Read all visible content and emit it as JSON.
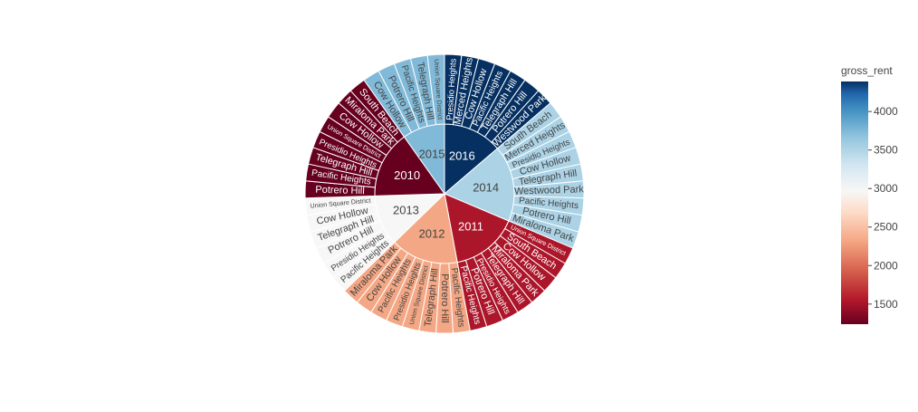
{
  "chart_data": {
    "type": "sunburst",
    "title": "",
    "colorbar": {
      "title": "gross_rent",
      "colorscale": "RdBu",
      "range": [
        1239,
        4390
      ],
      "ticks": [
        1500,
        2000,
        2500,
        3000,
        3500,
        4000
      ],
      "tick_labels": [
        "1500",
        "2000",
        "2500",
        "3000",
        "3500",
        "4000"
      ]
    },
    "years": [
      {
        "label": "2016",
        "gross_rent": 4390,
        "neighborhoods": [
          "Presidio Heights",
          "Merced Heights",
          "Cow Hollow",
          "Pacific Heights",
          "Telegraph Hill",
          "Potrero Hill",
          "Westwood Park"
        ]
      },
      {
        "label": "2014",
        "gross_rent": 3528,
        "neighborhoods": [
          "South Beach",
          "Merced Heights",
          "Presidio Heights",
          "Cow Hollow",
          "Telegraph Hill",
          "Westwood Park",
          "Pacific Heights",
          "Potrero Hill",
          "Miraloma Park"
        ]
      },
      {
        "label": "2011",
        "gross_rent": 1530,
        "neighborhoods": [
          "Union Square District",
          "South Beach",
          "Cow Hollow",
          "Miraloma Park",
          "Telegraph Hill",
          "Presidio Heights",
          "Potrero Hill",
          "Pacific Heights"
        ]
      },
      {
        "label": "2012",
        "gross_rent": 2324,
        "neighborhoods": [
          "Pacific Heights",
          "Potrero Hill",
          "Telegraph Hill",
          "Union Square District",
          "Presidio Heights",
          "Pacific Heights",
          "Cow Hollow",
          "Miraloma Park"
        ]
      },
      {
        "label": "2013",
        "gross_rent": 2971,
        "neighborhoods": [
          "Pacific Heights",
          "Presidio Heights",
          "Potrero Hill",
          "Telegraph Hill",
          "Cow Hollow",
          "Union Square District"
        ]
      },
      {
        "label": "2010",
        "gross_rent": 1239,
        "neighborhoods": [
          "Potrero Hill",
          "Pacific Heights",
          "Telegraph Hill",
          "Presidio Heights",
          "Union Square District",
          "Cow Hollow",
          "Miraloma Park",
          "South Beach"
        ]
      },
      {
        "label": "2015",
        "gross_rent": 3739,
        "neighborhoods": [
          "Cow Hollow",
          "Potrero Hill",
          "Pacific Heights",
          "Telegraph Hill",
          "Union Square District"
        ]
      }
    ]
  }
}
